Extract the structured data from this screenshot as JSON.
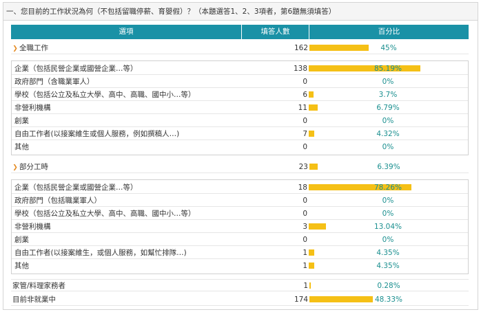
{
  "question": "一、您目前的工作狀況為何（不包括留職停薪、育嬰假）？（本題選答1、2、3項者，第6題無須填答）",
  "header": {
    "option": "選項",
    "count": "填答人數",
    "percent": "百分比"
  },
  "colors": {
    "header_bg": "#1a91a6",
    "bar": "#f5c016",
    "pct_text": "#1a8f8f",
    "caret": "#e48a21"
  },
  "groups": [
    {
      "label": "全職工作",
      "count": "162",
      "percent": "45%",
      "fraction": 0.45,
      "expanded": true,
      "items": [
        {
          "label": "企業（包括民營企業或國營企業…等）",
          "count": "138",
          "percent": "85.19%",
          "fraction": 0.8519
        },
        {
          "label": "政府部門（含職業軍人）",
          "count": "0",
          "percent": "0%",
          "fraction": 0
        },
        {
          "label": "學校（包括公立及私立大學、高中、高職、國中小…等）",
          "count": "6",
          "percent": "3.7%",
          "fraction": 0.037
        },
        {
          "label": "非營利機構",
          "count": "11",
          "percent": "6.79%",
          "fraction": 0.0679
        },
        {
          "label": "創業",
          "count": "0",
          "percent": "0%",
          "fraction": 0
        },
        {
          "label": "自由工作者(以接案維生或個人服務，例如撰稿人…)",
          "count": "7",
          "percent": "4.32%",
          "fraction": 0.0432
        },
        {
          "label": "其他",
          "count": "0",
          "percent": "0%",
          "fraction": 0
        }
      ]
    },
    {
      "label": "部分工時",
      "count": "23",
      "percent": "6.39%",
      "fraction": 0.0639,
      "expanded": true,
      "items": [
        {
          "label": "企業（包括民營企業或國營企業…等）",
          "count": "18",
          "percent": "78.26%",
          "fraction": 0.7826
        },
        {
          "label": "政府部門（包括職業軍人）",
          "count": "0",
          "percent": "0%",
          "fraction": 0
        },
        {
          "label": "學校（包括公立及私立大學、高中、高職、國中小…等）",
          "count": "0",
          "percent": "0%",
          "fraction": 0
        },
        {
          "label": "非營利機構",
          "count": "3",
          "percent": "13.04%",
          "fraction": 0.1304
        },
        {
          "label": "創業",
          "count": "0",
          "percent": "0%",
          "fraction": 0
        },
        {
          "label": "自由工作者(以接案維生，或個人服務，如幫忙排隊…)",
          "count": "1",
          "percent": "4.35%",
          "fraction": 0.0435
        },
        {
          "label": "其他",
          "count": "1",
          "percent": "4.35%",
          "fraction": 0.0435
        }
      ]
    }
  ],
  "extra_rows": [
    {
      "label": "家管/料理家務者",
      "count": "1",
      "percent": "0.28%",
      "fraction": 0.0028
    },
    {
      "label": "目前非就業中",
      "count": "174",
      "percent": "48.33%",
      "fraction": 0.4833
    }
  ]
}
